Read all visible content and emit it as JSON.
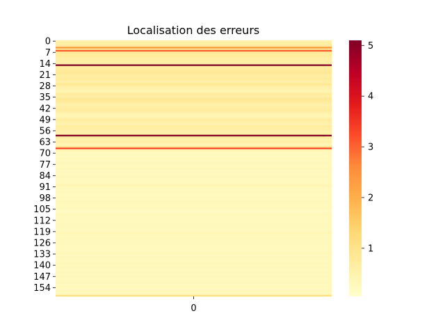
{
  "chart_data": {
    "type": "heatmap",
    "title": "Localisation des erreurs",
    "xlabel": "",
    "ylabel": "",
    "x_categories": [
      "0"
    ],
    "n_rows": 160,
    "y_tick_labels": [
      "0",
      "7",
      "14",
      "21",
      "28",
      "35",
      "42",
      "49",
      "56",
      "63",
      "70",
      "77",
      "84",
      "91",
      "98",
      "105",
      "112",
      "119",
      "126",
      "133",
      "140",
      "147",
      "154"
    ],
    "y_tick_step": 7,
    "colorbar": {
      "min": 0.05,
      "max": 5.1,
      "ticks": [
        "1",
        "2",
        "3",
        "4",
        "5"
      ],
      "colormap": "YlOrRd",
      "colors": [
        "#ffffcc",
        "#ffeda0",
        "#fed976",
        "#feb24c",
        "#fd8d3c",
        "#fc4e2a",
        "#e31a1c",
        "#bd0026",
        "#800026"
      ]
    },
    "values": [
      0.55,
      0.6,
      0.65,
      0.7,
      2.4,
      0.9,
      3.1,
      0.8,
      0.75,
      0.7,
      0.7,
      0.6,
      0.65,
      0.6,
      0.55,
      5.1,
      0.7,
      0.7,
      0.75,
      0.8,
      0.8,
      0.7,
      0.65,
      0.7,
      0.75,
      0.6,
      0.65,
      0.9,
      0.6,
      0.55,
      0.5,
      0.45,
      0.5,
      0.7,
      0.65,
      0.6,
      0.85,
      0.8,
      0.7,
      0.6,
      0.55,
      0.6,
      0.65,
      0.75,
      0.6,
      0.5,
      0.45,
      0.4,
      0.5,
      0.7,
      0.6,
      0.55,
      0.5,
      0.7,
      0.65,
      0.6,
      0.55,
      0.5,
      0.6,
      5.1,
      0.7,
      0.55,
      0.5,
      0.6,
      0.45,
      0.4,
      0.9,
      3.3,
      0.4,
      0.3,
      0.25,
      0.3,
      0.25,
      0.3,
      0.3,
      0.25,
      0.3,
      0.3,
      0.25,
      0.3,
      0.3,
      0.25,
      0.3,
      0.25,
      0.3,
      0.3,
      0.25,
      0.3,
      0.25,
      0.3,
      0.4,
      0.35,
      0.3,
      0.25,
      0.3,
      0.3,
      0.25,
      0.3,
      0.3,
      0.25,
      0.3,
      0.3,
      0.25,
      0.3,
      0.3,
      0.25,
      0.2,
      0.25,
      0.3,
      0.3,
      0.25,
      0.3,
      0.25,
      0.3,
      0.3,
      0.25,
      0.3,
      0.3,
      0.25,
      0.3,
      0.4,
      0.3,
      0.25,
      0.3,
      0.3,
      0.25,
      0.3,
      0.3,
      0.25,
      0.3,
      0.3,
      0.25,
      0.3,
      0.3,
      0.25,
      0.3,
      0.3,
      0.25,
      0.3,
      0.3,
      0.25,
      0.3,
      0.3,
      0.25,
      0.3,
      0.3,
      0.25,
      0.3,
      0.3,
      0.25,
      0.3,
      0.3,
      0.25,
      0.3,
      0.3,
      0.25,
      0.3,
      0.3,
      0.25,
      1.05
    ]
  }
}
